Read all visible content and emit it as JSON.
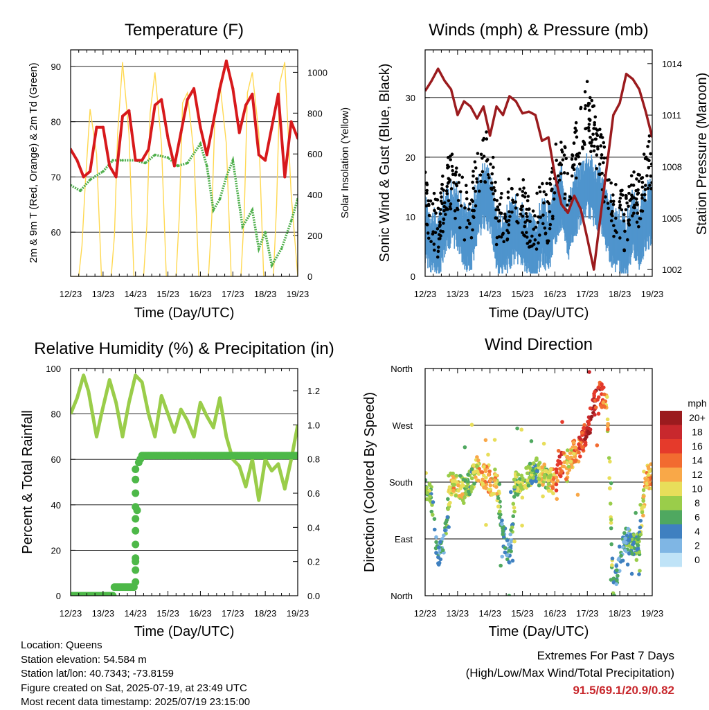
{
  "chart_data": [
    {
      "type": "line",
      "title": "Temperature (F)",
      "xlabel": "Time (Day/UTC)",
      "ylabel": "2m & 9m T (Red, Orange) & 2m Td (Green)",
      "ylabel_right": "Solar Insolation (Yellow)",
      "x_ticks": [
        "12/23",
        "13/23",
        "14/23",
        "15/23",
        "16/23",
        "17/23",
        "18/23",
        "19/23"
      ],
      "y_ticks": [
        60,
        70,
        80,
        90
      ],
      "y2_ticks": [
        0,
        200,
        400,
        600,
        800,
        1000
      ],
      "ylim": [
        52,
        93
      ],
      "y2lim": [
        0,
        1110
      ],
      "colors": {
        "temp": "#d7191c",
        "dewpoint": "#4daf4a",
        "solar": "#ffd850"
      },
      "series": [
        {
          "name": "2m T",
          "x": [
            12.0,
            12.2,
            12.4,
            12.6,
            12.8,
            13.0,
            13.2,
            13.4,
            13.6,
            13.8,
            14.0,
            14.2,
            14.4,
            14.6,
            14.8,
            15.0,
            15.2,
            15.4,
            15.6,
            15.8,
            16.0,
            16.2,
            16.4,
            16.6,
            16.8,
            17.0,
            17.2,
            17.4,
            17.6,
            17.8,
            18.0,
            18.2,
            18.4,
            18.6,
            18.8,
            19.0
          ],
          "values": [
            75,
            73,
            70,
            71,
            79,
            79,
            72,
            70,
            81,
            82,
            73,
            73,
            75,
            83,
            84,
            77,
            72,
            78,
            84,
            86,
            79,
            74,
            80,
            86,
            91,
            86,
            78,
            83,
            85,
            74,
            73,
            79,
            85,
            70,
            80,
            77
          ]
        },
        {
          "name": "2m Td",
          "x": [
            12.0,
            12.3,
            12.6,
            13.0,
            13.3,
            13.6,
            14.0,
            14.3,
            14.6,
            15.0,
            15.3,
            15.6,
            16.0,
            16.2,
            16.4,
            16.6,
            16.8,
            17.0,
            17.3,
            17.6,
            17.8,
            18.0,
            18.2,
            18.5,
            18.8,
            19.0
          ],
          "values": [
            68.5,
            67.5,
            69.5,
            71,
            73,
            73,
            73,
            72.5,
            74,
            73.5,
            72,
            72.5,
            76,
            72,
            64,
            66,
            70,
            73,
            61,
            64,
            57,
            60,
            54,
            57,
            62,
            66
          ]
        },
        {
          "name": "Solar Insolation",
          "x": [
            12.0,
            12.25,
            12.35,
            12.45,
            12.6,
            12.8,
            12.95,
            13.25,
            13.35,
            13.45,
            13.6,
            13.8,
            13.95,
            14.25,
            14.35,
            14.45,
            14.6,
            14.8,
            14.95,
            15.25,
            15.35,
            15.45,
            15.6,
            15.8,
            15.95,
            16.25,
            16.35,
            16.45,
            16.6,
            16.8,
            16.95,
            17.25,
            17.35,
            17.45,
            17.6,
            17.8,
            17.95,
            18.25,
            18.35,
            18.45,
            18.6,
            18.8,
            18.95,
            19.0
          ],
          "values": [
            0,
            0,
            150,
            450,
            820,
            600,
            0,
            0,
            200,
            700,
            1050,
            700,
            0,
            0,
            250,
            800,
            1000,
            650,
            0,
            0,
            300,
            850,
            900,
            600,
            0,
            0,
            280,
            800,
            950,
            650,
            0,
            0,
            300,
            900,
            1000,
            700,
            0,
            0,
            350,
            950,
            1050,
            400,
            100,
            0
          ]
        }
      ]
    },
    {
      "type": "scatter",
      "title": "Winds (mph) & Pressure (mb)",
      "xlabel": "Time (Day/UTC)",
      "ylabel": "Sonic Wind & Gust (Blue, Black)",
      "ylabel_right": "Station Pressure (Maroon)",
      "x_ticks": [
        "12/23",
        "13/23",
        "14/23",
        "15/23",
        "16/23",
        "17/23",
        "18/23",
        "19/23"
      ],
      "y_ticks": [
        0,
        10,
        20,
        30
      ],
      "y2_ticks": [
        1002,
        1005,
        1008,
        1011,
        1014
      ],
      "ylim": [
        0,
        38
      ],
      "y2lim": [
        1001.6,
        1014.8
      ],
      "colors": {
        "wind": "#4f94cd",
        "gust": "#000000",
        "pressure": "#9b1b1e"
      },
      "series": [
        {
          "name": "Station Pressure",
          "x": [
            12.0,
            12.2,
            12.4,
            12.6,
            12.8,
            13.0,
            13.2,
            13.4,
            13.6,
            13.8,
            14.0,
            14.2,
            14.4,
            14.6,
            14.8,
            15.0,
            15.2,
            15.4,
            15.6,
            15.8,
            16.0,
            16.2,
            16.4,
            16.6,
            16.8,
            17.0,
            17.2,
            17.4,
            17.6,
            17.8,
            18.0,
            18.2,
            18.4,
            18.6,
            18.8,
            19.0
          ],
          "values": [
            1012.4,
            1013.0,
            1013.7,
            1013.0,
            1012.5,
            1011.0,
            1011.8,
            1011.5,
            1010.8,
            1011.5,
            1009.8,
            1011.5,
            1011.0,
            1012.1,
            1011.8,
            1011.1,
            1011.2,
            1011.0,
            1009.5,
            1009.7,
            1007.5,
            1005.8,
            1005.3,
            1006.3,
            1005.5,
            1003.8,
            1002.0,
            1005.0,
            1008.0,
            1011.0,
            1011.7,
            1013.4,
            1013.1,
            1012.5,
            1011.2,
            1009.7
          ]
        },
        {
          "name": "Sonic Wind",
          "x": [
            12.0,
            12.2,
            12.4,
            12.6,
            12.8,
            13.0,
            13.2,
            13.4,
            13.6,
            13.8,
            14.0,
            14.2,
            14.4,
            14.6,
            14.8,
            15.0,
            15.2,
            15.4,
            15.6,
            15.8,
            16.0,
            16.2,
            16.4,
            16.6,
            16.8,
            17.0,
            17.2,
            17.4,
            17.6,
            17.8,
            18.0,
            18.2,
            18.4,
            18.6,
            18.8,
            19.0
          ],
          "values": [
            8,
            6,
            5,
            9,
            11,
            10,
            7,
            6,
            11,
            14,
            13,
            6,
            5,
            7,
            8,
            7,
            5,
            4,
            8,
            6,
            11,
            13,
            8,
            12,
            14,
            16,
            14,
            13,
            9,
            7,
            6,
            5,
            9,
            7,
            10,
            11
          ]
        },
        {
          "name": "Gust",
          "x": [
            12.0,
            12.2,
            12.4,
            12.6,
            12.8,
            13.0,
            13.2,
            13.4,
            13.6,
            13.8,
            14.0,
            14.2,
            14.4,
            14.6,
            14.8,
            15.0,
            15.2,
            15.4,
            15.6,
            15.8,
            16.0,
            16.2,
            16.4,
            16.6,
            16.8,
            17.0,
            17.2,
            17.4,
            17.6,
            17.8,
            18.0,
            18.2,
            18.4,
            18.6,
            18.8,
            19.0
          ],
          "values": [
            13,
            10,
            8,
            14,
            16,
            14,
            11,
            10,
            17,
            21,
            20,
            10,
            9,
            12,
            13,
            12,
            9,
            8,
            13,
            10,
            17,
            22,
            13,
            20,
            24,
            28,
            24,
            20,
            15,
            11,
            10,
            9,
            15,
            12,
            17,
            20
          ]
        }
      ]
    },
    {
      "type": "line",
      "title": "Relative Humidity (%) & Precipitation (in)",
      "xlabel": "Time (Day/UTC)",
      "ylabel": "Percent & Total Rainfall",
      "x_ticks": [
        "12/23",
        "13/23",
        "14/23",
        "15/23",
        "16/23",
        "17/23",
        "18/23",
        "19/23"
      ],
      "y_ticks": [
        0,
        20,
        40,
        60,
        80,
        100
      ],
      "y2_ticks": [
        0.0,
        0.2,
        0.4,
        0.6,
        0.8,
        1.0,
        1.2
      ],
      "ylim": [
        0,
        100
      ],
      "y2lim": [
        0,
        1.33
      ],
      "colors": {
        "rh": "#9acd4a",
        "precip": "#4db848"
      },
      "series": [
        {
          "name": "Relative Humidity",
          "x": [
            12.0,
            12.2,
            12.4,
            12.55,
            12.8,
            12.95,
            13.2,
            13.4,
            13.6,
            13.8,
            14.0,
            14.2,
            14.4,
            14.6,
            14.8,
            15.0,
            15.2,
            15.4,
            15.6,
            15.8,
            16.0,
            16.2,
            16.4,
            16.6,
            16.8,
            17.0,
            17.2,
            17.4,
            17.6,
            17.8,
            18.0,
            18.2,
            18.4,
            18.6,
            18.8,
            19.0
          ],
          "values": [
            80,
            87,
            97,
            90,
            70,
            80,
            95,
            85,
            70,
            85,
            97,
            94,
            80,
            70,
            88,
            80,
            72,
            82,
            77,
            70,
            85,
            79,
            74,
            87,
            70,
            60,
            57,
            48,
            60,
            42,
            60,
            55,
            58,
            47,
            60,
            75
          ]
        },
        {
          "name": "Total Precipitation",
          "x": [
            12.0,
            13.3,
            13.35,
            13.95,
            14.0,
            14.05,
            14.1,
            14.2,
            14.5,
            19.0
          ],
          "values": [
            0.0,
            0.0,
            0.05,
            0.05,
            0.2,
            0.5,
            0.78,
            0.82,
            0.82,
            0.82
          ]
        }
      ]
    },
    {
      "type": "scatter",
      "title": "Wind Direction",
      "xlabel": "Time (Day/UTC)",
      "ylabel": "Direction (Colored By Speed)",
      "x_ticks": [
        "12/23",
        "13/23",
        "14/23",
        "15/23",
        "16/23",
        "17/23",
        "18/23",
        "19/23"
      ],
      "y_ticks": [
        "North",
        "East",
        "South",
        "West",
        "North"
      ],
      "ylim": [
        0,
        360
      ],
      "colorbar_title": "mph",
      "colorbar_labels": [
        "20+",
        "18",
        "16",
        "14",
        "12",
        "10",
        "8",
        "6",
        "4",
        "2",
        "0"
      ],
      "colorbar_colors": [
        "#9b1b1e",
        "#c8282d",
        "#e53a2b",
        "#f26b30",
        "#f9a848",
        "#e8de5a",
        "#9acd4a",
        "#4fa860",
        "#3f80c0",
        "#7fb6e4",
        "#bfe3f7"
      ],
      "series": [
        {
          "name": "Direction",
          "x": [
            12.0,
            12.2,
            12.4,
            12.6,
            12.8,
            13.0,
            13.2,
            13.4,
            13.6,
            13.8,
            14.0,
            14.2,
            14.4,
            14.6,
            14.8,
            15.0,
            15.2,
            15.4,
            15.6,
            15.8,
            16.0,
            16.2,
            16.4,
            16.6,
            16.8,
            17.0,
            17.2,
            17.4,
            17.6,
            17.8,
            18.0,
            18.2,
            18.4,
            18.6,
            18.8,
            19.0
          ],
          "values": [
            180,
            150,
            60,
            90,
            180,
            175,
            165,
            180,
            200,
            190,
            180,
            180,
            100,
            60,
            180,
            175,
            190,
            200,
            190,
            185,
            180,
            210,
            200,
            230,
            240,
            260,
            300,
            320,
            310,
            5,
            60,
            90,
            80,
            80,
            185,
            190
          ],
          "speeds": [
            8,
            6,
            4,
            4,
            10,
            11,
            8,
            7,
            10,
            12,
            12,
            10,
            4,
            4,
            8,
            10,
            8,
            6,
            10,
            8,
            14,
            16,
            10,
            12,
            16,
            18,
            18,
            16,
            12,
            6,
            4,
            4,
            6,
            6,
            12,
            12
          ]
        }
      ]
    }
  ],
  "info": {
    "location": "Location: Queens",
    "elevation": "Station elevation: 54.584 m",
    "latlon": "Station lat/lon: 40.7343; -73.8159",
    "created": "Figure created on Sat, 2025-07-19, at 23:49 UTC",
    "recent": "Most recent data timestamp: 2025/07/19 23:15:00"
  },
  "extremes": {
    "title": "Extremes For Past 7 Days",
    "subtitle": "(High/Low/Max Wind/Total Precipitation)",
    "values": "91.5/69.1/20.9/0.82",
    "color": "#c8282d"
  }
}
